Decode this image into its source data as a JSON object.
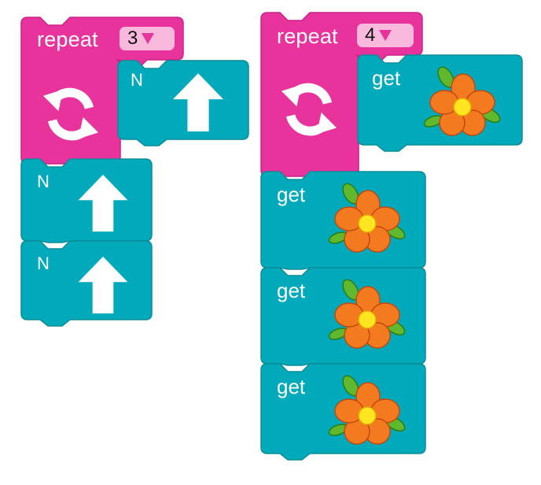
{
  "colors": {
    "repeat_block": "#e8329c",
    "repeat_block_edge": "#c8238a",
    "command_block": "#00aabb",
    "command_block_edge": "#0a8c99",
    "count_box": "#f8b9dd",
    "dropdown_arrow": "#e8329c",
    "flower_petal": "#f47a20",
    "flower_center": "#ffe620",
    "flower_leaf": "#5fb82e"
  },
  "icons": {
    "loop": "loop-arrows-icon",
    "move": "arrow-up-icon",
    "collect": "flower-icon",
    "dropdown": "triangle-down-icon"
  },
  "program_left": {
    "repeat": {
      "label": "repeat",
      "count": "3"
    },
    "inner": [
      {
        "direction": "N"
      }
    ],
    "after": [
      {
        "direction": "N"
      },
      {
        "direction": "N"
      }
    ]
  },
  "program_right": {
    "repeat": {
      "label": "repeat",
      "count": "4"
    },
    "inner": [
      {
        "label": "get"
      }
    ],
    "after": [
      {
        "label": "get"
      },
      {
        "label": "get"
      },
      {
        "label": "get"
      }
    ]
  }
}
